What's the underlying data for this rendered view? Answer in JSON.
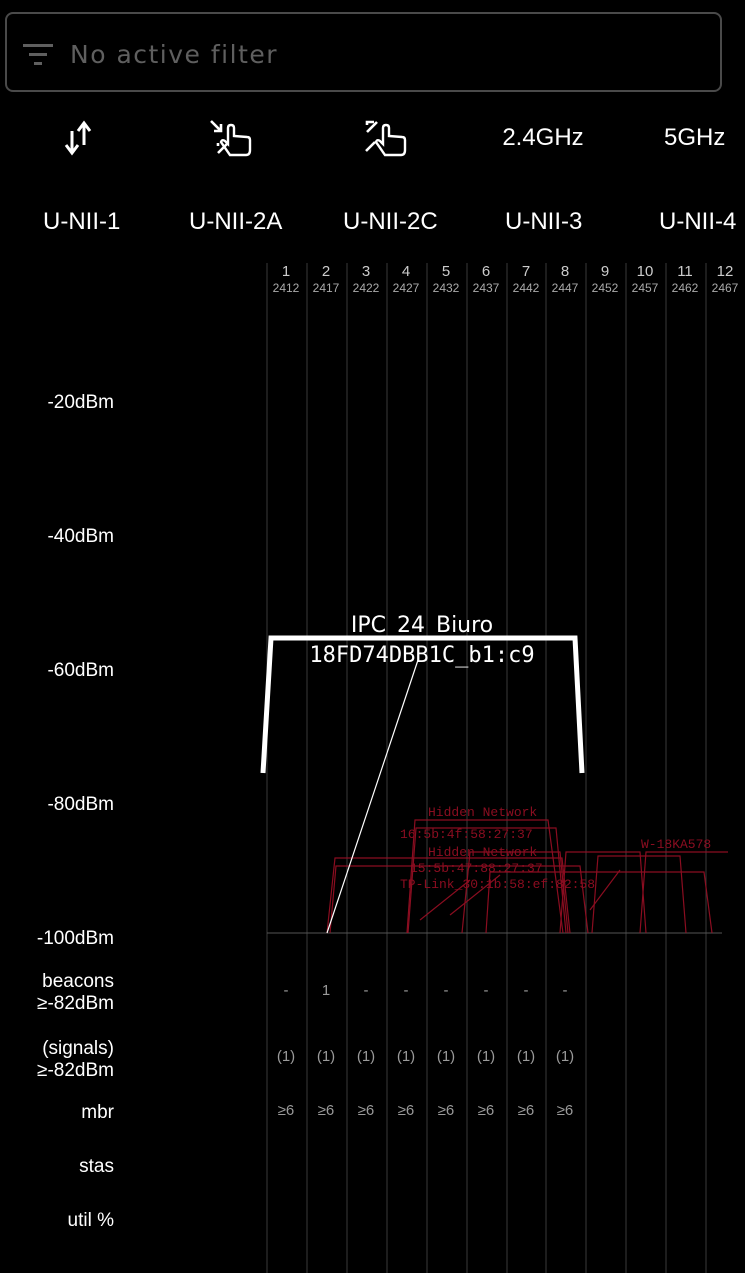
{
  "filter": {
    "placeholder": "No active filter",
    "icon": "filter-icon"
  },
  "toolbar": {
    "sort_icon": "sort-arrows-icon",
    "zoom_in_icon": "pinch-zoom-in-icon",
    "zoom_out_icon": "pinch-zoom-out-icon",
    "band_24": "2.4GHz",
    "band_5": "5GHz"
  },
  "bands": [
    "U-NII-1",
    "U-NII-2A",
    "U-NII-2C",
    "U-NII-3",
    "U-NII-4"
  ],
  "y_axis": [
    "-20dBm",
    "-40dBm",
    "-60dBm",
    "-80dBm",
    "-100dBm"
  ],
  "channels": [
    {
      "n": "1",
      "f": "2412"
    },
    {
      "n": "2",
      "f": "2417"
    },
    {
      "n": "3",
      "f": "2422"
    },
    {
      "n": "4",
      "f": "2427"
    },
    {
      "n": "5",
      "f": "2432"
    },
    {
      "n": "6",
      "f": "2437"
    },
    {
      "n": "7",
      "f": "2442"
    },
    {
      "n": "8",
      "f": "2447"
    },
    {
      "n": "9",
      "f": "2452"
    },
    {
      "n": "10",
      "f": "2457"
    },
    {
      "n": "11",
      "f": "2462"
    },
    {
      "n": "12",
      "f": "2467"
    }
  ],
  "rows": {
    "beacons_label_1": "beacons",
    "beacons_label_2": "≥-82dBm",
    "signals_label_1": "(signals)",
    "signals_label_2": "≥-82dBm",
    "mbr_label": "mbr",
    "stas_label": "stas",
    "util_label": "util %"
  },
  "beacons": [
    "-",
    "1",
    "-",
    "-",
    "-",
    "-",
    "-",
    "-"
  ],
  "signals": [
    "(1)",
    "(1)",
    "(1)",
    "(1)",
    "(1)",
    "(1)",
    "(1)",
    "(1)"
  ],
  "mbr": [
    "≥6",
    "≥6",
    "≥6",
    "≥6",
    "≥6",
    "≥6",
    "≥6",
    "≥6"
  ],
  "main_network": {
    "ssid": "IPC_24_Biuro",
    "bssid": "18FD74DBB1C_b1:c9",
    "signal_dbm": -55
  },
  "colors": {
    "background": "#000000",
    "grid": "#3a3a3a",
    "main_network": "#ffffff",
    "other_networks": "#b0102a"
  }
}
